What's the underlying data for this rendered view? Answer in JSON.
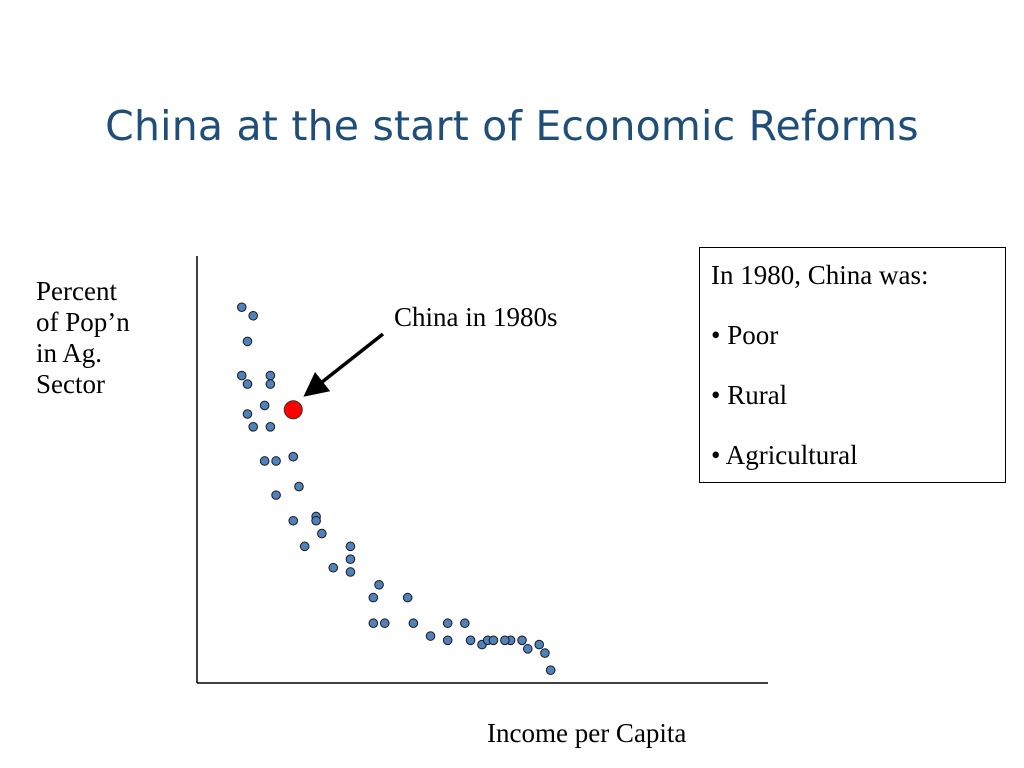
{
  "slide": {
    "title": "China at the start of Economic Reforms"
  },
  "chart_data": {
    "type": "scatter",
    "xlabel": "Income per Capita",
    "ylabel_lines": [
      "Percent",
      "of Pop’n",
      "in Ag.",
      "Sector"
    ],
    "grid": false,
    "point_color": "#4f81bd",
    "highlight_color": "#ff0000",
    "points": [
      [
        8,
        88
      ],
      [
        10,
        86
      ],
      [
        9,
        80
      ],
      [
        8,
        72
      ],
      [
        9,
        70
      ],
      [
        13,
        72
      ],
      [
        13,
        70
      ],
      [
        12,
        65
      ],
      [
        9,
        63
      ],
      [
        10,
        60
      ],
      [
        13,
        60
      ],
      [
        12,
        52
      ],
      [
        14,
        52
      ],
      [
        17,
        53
      ],
      [
        14,
        44
      ],
      [
        18,
        46
      ],
      [
        17,
        38
      ],
      [
        21,
        39
      ],
      [
        19,
        32
      ],
      [
        21,
        38
      ],
      [
        22,
        35
      ],
      [
        24,
        27
      ],
      [
        27,
        26
      ],
      [
        27,
        29
      ],
      [
        27,
        32
      ],
      [
        31,
        20
      ],
      [
        32,
        23
      ],
      [
        37,
        20
      ],
      [
        31,
        14
      ],
      [
        33,
        14
      ],
      [
        38,
        14
      ],
      [
        41,
        11
      ],
      [
        44,
        10
      ],
      [
        44,
        14
      ],
      [
        48,
        10
      ],
      [
        47,
        14
      ],
      [
        50,
        9
      ],
      [
        51,
        10
      ],
      [
        55,
        10
      ],
      [
        58,
        8
      ],
      [
        54,
        10
      ],
      [
        52,
        10
      ],
      [
        60,
        9
      ],
      [
        61,
        7
      ],
      [
        57,
        10
      ],
      [
        62,
        3
      ]
    ],
    "highlight": {
      "x": 17,
      "y": 64,
      "label": "China in 1980s"
    }
  },
  "info_box": {
    "heading": "In 1980, China was:",
    "bullets": [
      "• Poor",
      "• Rural",
      "• Agricultural"
    ]
  }
}
